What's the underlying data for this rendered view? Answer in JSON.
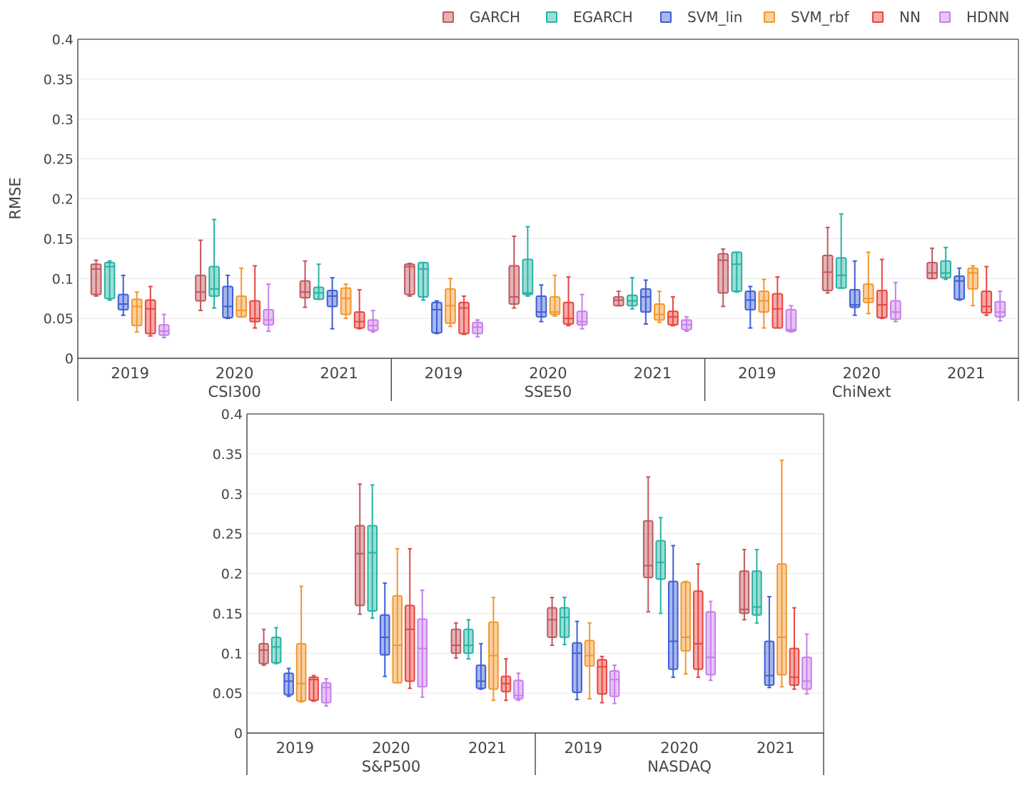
{
  "chart_data": {
    "type": "box",
    "ylabel": "RMSE",
    "y_ticks": [
      "0.4",
      "0.35",
      "0.3",
      "0.25",
      "0.2",
      "0.15",
      "0.1",
      "0.05",
      "0"
    ],
    "ylim": [
      0,
      0.4
    ],
    "grid": true,
    "legend_placement": "top-right",
    "series": [
      {
        "name": "GARCH",
        "color": "#C0585E"
      },
      {
        "name": "EGARCH",
        "color": "#26B3A3"
      },
      {
        "name": "SVM_lin",
        "color": "#3D5FD6"
      },
      {
        "name": "SVM_rbf",
        "color": "#F2972F"
      },
      {
        "name": "NN",
        "color": "#E8453F"
      },
      {
        "name": "HDNN",
        "color": "#C87EEA"
      }
    ],
    "panels": [
      {
        "groups": [
          {
            "market": "CSI300",
            "years": [
              {
                "year": "2019",
                "boxes": [
                  [
                    0.078,
                    0.08,
                    0.112,
                    0.118,
                    0.123
                  ],
                  [
                    0.073,
                    0.075,
                    0.115,
                    0.12,
                    0.122
                  ],
                  [
                    0.054,
                    0.061,
                    0.068,
                    0.08,
                    0.104
                  ],
                  [
                    0.033,
                    0.041,
                    0.065,
                    0.074,
                    0.083
                  ],
                  [
                    0.028,
                    0.031,
                    0.062,
                    0.073,
                    0.09
                  ],
                  [
                    0.026,
                    0.029,
                    0.034,
                    0.042,
                    0.055
                  ]
                ]
              },
              {
                "year": "2020",
                "boxes": [
                  [
                    0.06,
                    0.072,
                    0.083,
                    0.104,
                    0.148
                  ],
                  [
                    0.063,
                    0.078,
                    0.087,
                    0.115,
                    0.174
                  ],
                  [
                    0.05,
                    0.051,
                    0.065,
                    0.09,
                    0.104
                  ],
                  [
                    0.052,
                    0.052,
                    0.06,
                    0.078,
                    0.113
                  ],
                  [
                    0.038,
                    0.046,
                    0.05,
                    0.072,
                    0.116
                  ],
                  [
                    0.034,
                    0.042,
                    0.048,
                    0.061,
                    0.093
                  ]
                ]
              },
              {
                "year": "2021",
                "boxes": [
                  [
                    0.064,
                    0.076,
                    0.083,
                    0.097,
                    0.122
                  ],
                  [
                    0.074,
                    0.074,
                    0.082,
                    0.089,
                    0.118
                  ],
                  [
                    0.037,
                    0.065,
                    0.078,
                    0.085,
                    0.101
                  ],
                  [
                    0.05,
                    0.055,
                    0.075,
                    0.088,
                    0.093
                  ],
                  [
                    0.037,
                    0.038,
                    0.046,
                    0.058,
                    0.086
                  ],
                  [
                    0.033,
                    0.035,
                    0.041,
                    0.048,
                    0.06
                  ]
                ]
              }
            ]
          },
          {
            "market": "SSE50",
            "years": [
              {
                "year": "2019",
                "boxes": [
                  [
                    0.078,
                    0.08,
                    0.115,
                    0.118,
                    0.119
                  ],
                  [
                    0.073,
                    0.077,
                    0.112,
                    0.12,
                    0.12
                  ],
                  [
                    0.031,
                    0.032,
                    0.061,
                    0.07,
                    0.072
                  ],
                  [
                    0.04,
                    0.044,
                    0.066,
                    0.087,
                    0.1
                  ],
                  [
                    0.03,
                    0.031,
                    0.063,
                    0.07,
                    0.078
                  ],
                  [
                    0.027,
                    0.031,
                    0.039,
                    0.045,
                    0.048
                  ]
                ]
              },
              {
                "year": "2020",
                "boxes": [
                  [
                    0.063,
                    0.068,
                    0.077,
                    0.116,
                    0.153
                  ],
                  [
                    0.078,
                    0.08,
                    0.082,
                    0.124,
                    0.165
                  ],
                  [
                    0.046,
                    0.052,
                    0.058,
                    0.078,
                    0.092
                  ],
                  [
                    0.053,
                    0.055,
                    0.058,
                    0.077,
                    0.104
                  ],
                  [
                    0.041,
                    0.043,
                    0.05,
                    0.07,
                    0.102
                  ],
                  [
                    0.037,
                    0.042,
                    0.046,
                    0.059,
                    0.08
                  ]
                ]
              },
              {
                "year": "2021",
                "boxes": [
                  [
                    0.066,
                    0.066,
                    0.073,
                    0.077,
                    0.084
                  ],
                  [
                    0.062,
                    0.066,
                    0.072,
                    0.079,
                    0.101
                  ],
                  [
                    0.043,
                    0.058,
                    0.077,
                    0.087,
                    0.098
                  ],
                  [
                    0.045,
                    0.048,
                    0.055,
                    0.068,
                    0.084
                  ],
                  [
                    0.041,
                    0.042,
                    0.052,
                    0.059,
                    0.077
                  ],
                  [
                    0.034,
                    0.036,
                    0.042,
                    0.048,
                    0.052
                  ]
                ]
              }
            ]
          },
          {
            "market": "ChiNext",
            "years": [
              {
                "year": "2019",
                "boxes": [
                  [
                    0.065,
                    0.082,
                    0.123,
                    0.131,
                    0.137
                  ],
                  [
                    0.083,
                    0.084,
                    0.118,
                    0.133,
                    0.133
                  ],
                  [
                    0.038,
                    0.061,
                    0.073,
                    0.084,
                    0.09
                  ],
                  [
                    0.038,
                    0.058,
                    0.072,
                    0.084,
                    0.099
                  ],
                  [
                    0.038,
                    0.038,
                    0.062,
                    0.081,
                    0.102
                  ],
                  [
                    0.033,
                    0.034,
                    0.036,
                    0.061,
                    0.066
                  ]
                ]
              },
              {
                "year": "2020",
                "boxes": [
                  [
                    0.082,
                    0.085,
                    0.108,
                    0.129,
                    0.164
                  ],
                  [
                    0.088,
                    0.088,
                    0.104,
                    0.126,
                    0.181
                  ],
                  [
                    0.054,
                    0.064,
                    0.067,
                    0.086,
                    0.122
                  ],
                  [
                    0.056,
                    0.07,
                    0.075,
                    0.093,
                    0.133
                  ],
                  [
                    0.05,
                    0.051,
                    0.067,
                    0.085,
                    0.124
                  ],
                  [
                    0.046,
                    0.049,
                    0.058,
                    0.072,
                    0.095
                  ]
                ]
              },
              {
                "year": "2021",
                "boxes": [
                  [
                    0.1,
                    0.1,
                    0.107,
                    0.12,
                    0.138
                  ],
                  [
                    0.099,
                    0.101,
                    0.107,
                    0.122,
                    0.139
                  ],
                  [
                    0.073,
                    0.074,
                    0.097,
                    0.103,
                    0.113
                  ],
                  [
                    0.066,
                    0.087,
                    0.107,
                    0.113,
                    0.116
                  ],
                  [
                    0.054,
                    0.057,
                    0.065,
                    0.084,
                    0.115
                  ],
                  [
                    0.047,
                    0.052,
                    0.058,
                    0.071,
                    0.084
                  ]
                ]
              }
            ]
          }
        ]
      },
      {
        "groups": [
          {
            "market": "S&P500",
            "years": [
              {
                "year": "2019",
                "boxes": [
                  [
                    0.085,
                    0.087,
                    0.104,
                    0.112,
                    0.13
                  ],
                  [
                    0.087,
                    0.088,
                    0.108,
                    0.12,
                    0.132
                  ],
                  [
                    0.046,
                    0.048,
                    0.065,
                    0.075,
                    0.081
                  ],
                  [
                    0.039,
                    0.04,
                    0.062,
                    0.112,
                    0.184
                  ],
                  [
                    0.04,
                    0.041,
                    0.067,
                    0.07,
                    0.072
                  ],
                  [
                    0.034,
                    0.038,
                    0.057,
                    0.063,
                    0.068
                  ]
                ]
              },
              {
                "year": "2020",
                "boxes": [
                  [
                    0.149,
                    0.16,
                    0.225,
                    0.26,
                    0.312
                  ],
                  [
                    0.144,
                    0.153,
                    0.226,
                    0.26,
                    0.311
                  ],
                  [
                    0.071,
                    0.098,
                    0.12,
                    0.148,
                    0.188
                  ],
                  [
                    0.063,
                    0.063,
                    0.11,
                    0.172,
                    0.231
                  ],
                  [
                    0.056,
                    0.065,
                    0.13,
                    0.16,
                    0.231
                  ],
                  [
                    0.045,
                    0.058,
                    0.106,
                    0.143,
                    0.179
                  ]
                ]
              },
              {
                "year": "2021",
                "boxes": [
                  [
                    0.094,
                    0.1,
                    0.11,
                    0.13,
                    0.138
                  ],
                  [
                    0.093,
                    0.1,
                    0.11,
                    0.13,
                    0.142
                  ],
                  [
                    0.055,
                    0.056,
                    0.065,
                    0.085,
                    0.112
                  ],
                  [
                    0.041,
                    0.055,
                    0.097,
                    0.139,
                    0.17
                  ],
                  [
                    0.041,
                    0.052,
                    0.062,
                    0.071,
                    0.093
                  ],
                  [
                    0.041,
                    0.043,
                    0.047,
                    0.066,
                    0.075
                  ]
                ]
              }
            ]
          },
          {
            "market": "NASDAQ",
            "years": [
              {
                "year": "2019",
                "boxes": [
                  [
                    0.11,
                    0.12,
                    0.142,
                    0.157,
                    0.17
                  ],
                  [
                    0.111,
                    0.12,
                    0.145,
                    0.157,
                    0.17
                  ],
                  [
                    0.042,
                    0.051,
                    0.1,
                    0.113,
                    0.14
                  ],
                  [
                    0.043,
                    0.084,
                    0.097,
                    0.116,
                    0.138
                  ],
                  [
                    0.038,
                    0.049,
                    0.083,
                    0.092,
                    0.096
                  ],
                  [
                    0.037,
                    0.046,
                    0.067,
                    0.078,
                    0.085
                  ]
                ]
              },
              {
                "year": "2020",
                "boxes": [
                  [
                    0.152,
                    0.195,
                    0.21,
                    0.266,
                    0.321
                  ],
                  [
                    0.15,
                    0.193,
                    0.214,
                    0.241,
                    0.27
                  ],
                  [
                    0.07,
                    0.08,
                    0.115,
                    0.19,
                    0.235
                  ],
                  [
                    0.074,
                    0.103,
                    0.12,
                    0.189,
                    0.19
                  ],
                  [
                    0.07,
                    0.08,
                    0.112,
                    0.178,
                    0.212
                  ],
                  [
                    0.066,
                    0.073,
                    0.095,
                    0.152,
                    0.165
                  ]
                ]
              },
              {
                "year": "2021",
                "boxes": [
                  [
                    0.142,
                    0.15,
                    0.155,
                    0.203,
                    0.23
                  ],
                  [
                    0.138,
                    0.148,
                    0.158,
                    0.203,
                    0.23
                  ],
                  [
                    0.057,
                    0.06,
                    0.072,
                    0.115,
                    0.171
                  ],
                  [
                    0.058,
                    0.073,
                    0.12,
                    0.212,
                    0.342
                  ],
                  [
                    0.055,
                    0.06,
                    0.07,
                    0.106,
                    0.157
                  ],
                  [
                    0.049,
                    0.055,
                    0.065,
                    0.095,
                    0.124
                  ]
                ]
              }
            ]
          }
        ]
      }
    ]
  }
}
